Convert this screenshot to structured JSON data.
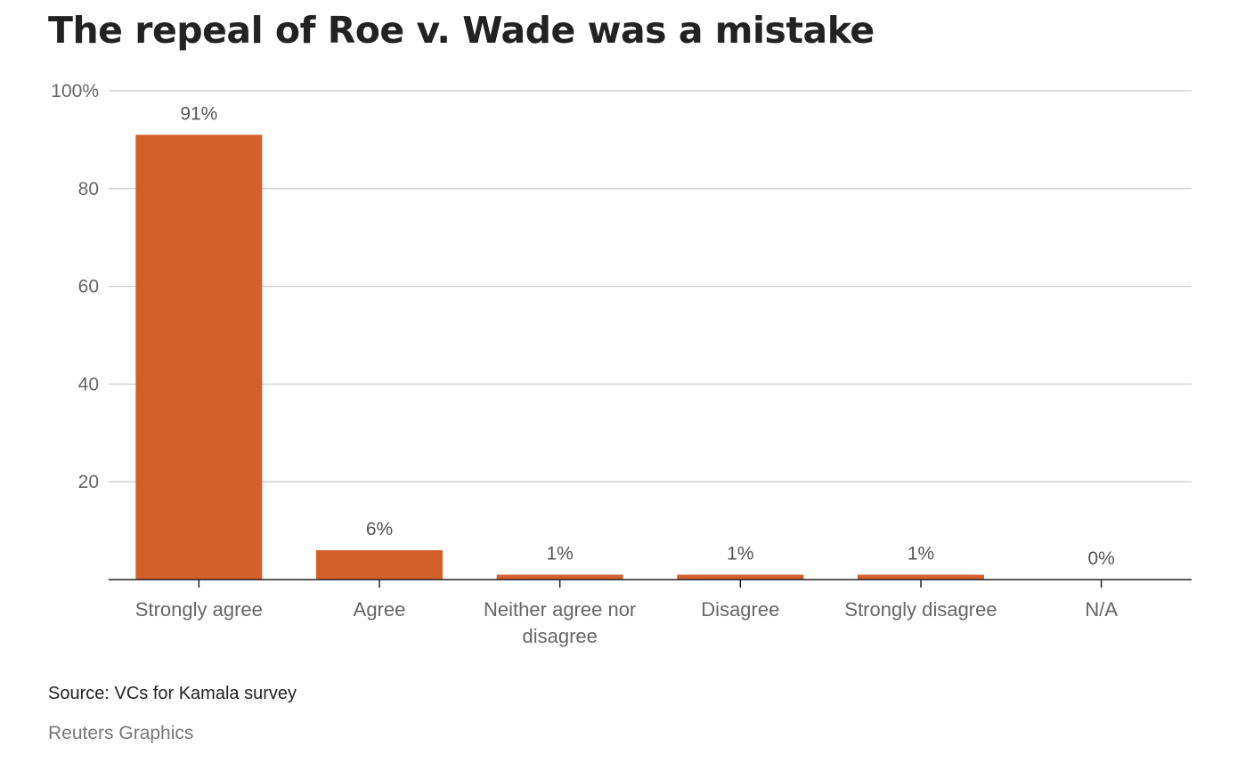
{
  "title": "The repeal of Roe v. Wade was a mistake",
  "source": "Source: VCs for Kamala survey",
  "credit": "Reuters Graphics",
  "colors": {
    "bar": "#D35F2A",
    "grid": "#cccccc",
    "axis": "#222222"
  },
  "chart_data": {
    "type": "bar",
    "categories": [
      [
        "Strongly agree"
      ],
      [
        "Agree"
      ],
      [
        "Neither agree nor",
        "disagree"
      ],
      [
        "Disagree"
      ],
      [
        "Strongly disagree"
      ],
      [
        "N/A"
      ]
    ],
    "values": [
      91,
      6,
      1,
      1,
      1,
      0
    ],
    "data_labels": [
      "91%",
      "6%",
      "1%",
      "1%",
      "1%",
      "0%"
    ],
    "yticks": [
      {
        "value": 20,
        "label": "20"
      },
      {
        "value": 40,
        "label": "40"
      },
      {
        "value": 60,
        "label": "60"
      },
      {
        "value": 80,
        "label": "80"
      },
      {
        "value": 100,
        "label": "100%"
      }
    ],
    "ylim": [
      0,
      100
    ],
    "grid": true,
    "legend": "none"
  }
}
